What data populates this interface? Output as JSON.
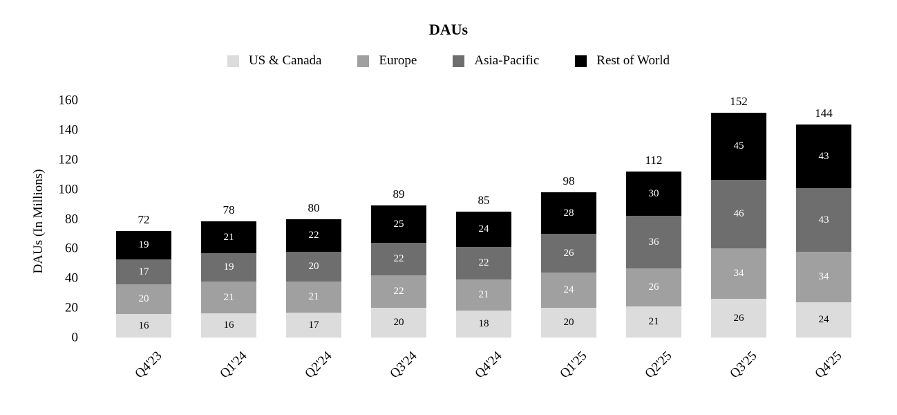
{
  "title": "DAUs",
  "y_axis": {
    "label": "DAUs (In Millions)",
    "ticks": [
      0,
      20,
      40,
      60,
      80,
      100,
      120,
      140,
      160
    ]
  },
  "chart_data": {
    "type": "bar",
    "stacked": true,
    "title": "DAUs",
    "xlabel": "",
    "ylabel": "DAUs (In Millions)",
    "ylim": [
      0,
      160
    ],
    "grid": false,
    "legend_position": "top",
    "categories": [
      "Q4'23",
      "Q1'24",
      "Q2'24",
      "Q3'24",
      "Q4'24",
      "Q1'25",
      "Q2'25",
      "Q3'25",
      "Q4'25"
    ],
    "series": [
      {
        "name": "US & Canada",
        "color": "#dcdcdc",
        "label_color": "#000000",
        "values": [
          16,
          16,
          17,
          20,
          18,
          20,
          21,
          26,
          24
        ]
      },
      {
        "name": "Europe",
        "color": "#a0a0a0",
        "label_color": "#ffffff",
        "values": [
          20,
          21,
          21,
          22,
          21,
          24,
          26,
          34,
          34
        ]
      },
      {
        "name": "Asia-Pacific",
        "color": "#6e6e6e",
        "label_color": "#ffffff",
        "values": [
          17,
          19,
          20,
          22,
          22,
          26,
          36,
          46,
          43
        ]
      },
      {
        "name": "Rest of World",
        "color": "#000000",
        "label_color": "#ffffff",
        "values": [
          19,
          21,
          22,
          25,
          24,
          28,
          30,
          45,
          43
        ]
      }
    ],
    "totals": [
      72,
      78,
      80,
      89,
      85,
      98,
      112,
      152,
      144
    ]
  }
}
